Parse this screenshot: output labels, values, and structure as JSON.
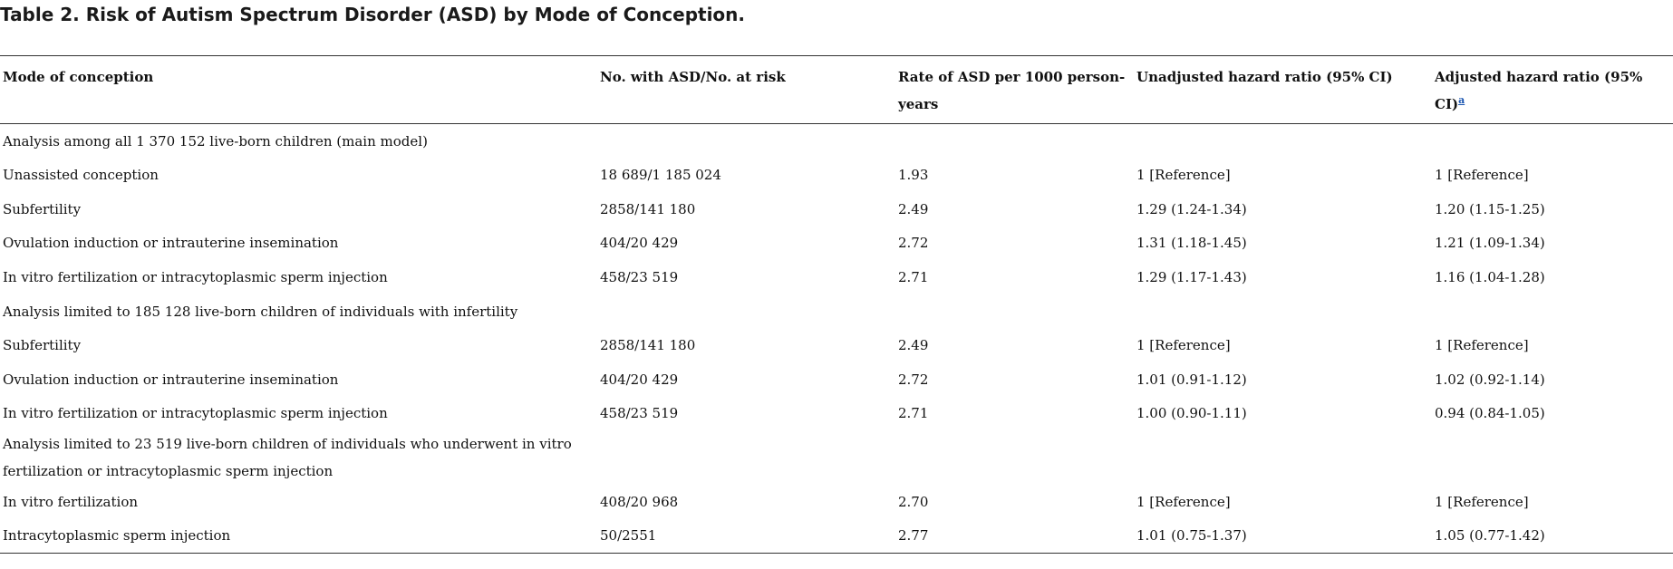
{
  "title": "Table 2. Risk of Autism Spectrum Disorder (ASD) by Mode of Conception.",
  "headers": {
    "mode": "Mode of conception",
    "count": "No. with ASD/No. at risk",
    "rate": "Rate of ASD per 1000 person-years",
    "unadjusted": "Unadjusted hazard ratio (95% CI)",
    "adjusted": "Adjusted hazard ratio (95% CI)",
    "adjusted_footnote": "a"
  },
  "sections": [
    {
      "label": "Analysis among all 1 370 152 live-born children (main model)",
      "rows": [
        {
          "mode": "Unassisted conception",
          "count": "18 689/1 185 024",
          "rate": "1.93",
          "unadjusted": "1 [Reference]",
          "adjusted": "1 [Reference]"
        },
        {
          "mode": "Subfertility",
          "count": "2858/141 180",
          "rate": "2.49",
          "unadjusted": "1.29 (1.24-1.34)",
          "adjusted": "1.20 (1.15-1.25)"
        },
        {
          "mode": "Ovulation induction or intrauterine insemination",
          "count": "404/20 429",
          "rate": "2.72",
          "unadjusted": "1.31 (1.18-1.45)",
          "adjusted": "1.21 (1.09-1.34)"
        },
        {
          "mode": "In vitro fertilization or intracytoplasmic sperm injection",
          "count": "458/23 519",
          "rate": "2.71",
          "unadjusted": "1.29 (1.17-1.43)",
          "adjusted": "1.16 (1.04-1.28)"
        }
      ]
    },
    {
      "label": "Analysis limited to 185 128 live-born children of individuals with infertility",
      "rows": [
        {
          "mode": "Subfertility",
          "count": "2858/141 180",
          "rate": "2.49",
          "unadjusted": "1 [Reference]",
          "adjusted": "1 [Reference]"
        },
        {
          "mode": "Ovulation induction or intrauterine insemination",
          "count": "404/20 429",
          "rate": "2.72",
          "unadjusted": "1.01 (0.91-1.12)",
          "adjusted": "1.02 (0.92-1.14)"
        },
        {
          "mode": "In vitro fertilization or intracytoplasmic sperm injection",
          "count": "458/23 519",
          "rate": "2.71",
          "unadjusted": "1.00 (0.90-1.11)",
          "adjusted": "0.94 (0.84-1.05)"
        }
      ]
    },
    {
      "label": "Analysis limited to 23 519 live-born children of individuals who underwent in vitro fertilization or intracytoplasmic sperm injection",
      "rows": [
        {
          "mode": "In vitro fertilization",
          "count": "408/20 968",
          "rate": "2.70",
          "unadjusted": "1 [Reference]",
          "adjusted": "1 [Reference]"
        },
        {
          "mode": "Intracytoplasmic sperm injection",
          "count": "50/2551",
          "rate": "2.77",
          "unadjusted": "1.01 (0.75-1.37)",
          "adjusted": "1.05 (0.77-1.42)"
        }
      ]
    }
  ]
}
